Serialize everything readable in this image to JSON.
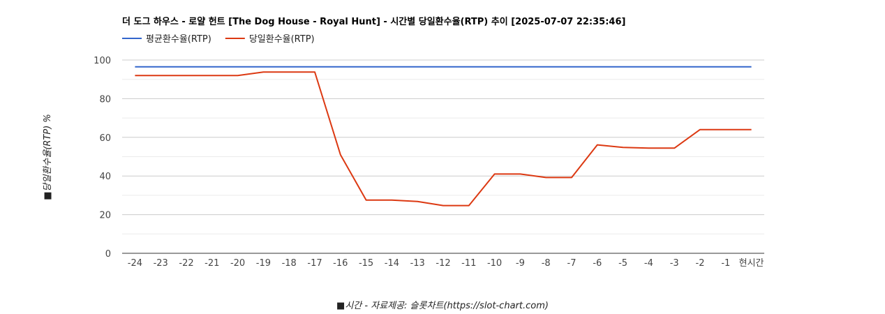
{
  "chart_data": {
    "type": "line",
    "title": "더 도그 하우스 - 로얄 헌트 [The Dog House - Royal Hunt] - 시간별 당일환수율(RTP) 추이 [2025-07-07 22:35:46]",
    "xlabel": "■시간 - 자료제공: 슬롯차트(https://slot-chart.com)",
    "ylabel": "■당일환수율(RTP) %",
    "categories": [
      "-24",
      "-23",
      "-22",
      "-21",
      "-20",
      "-19",
      "-18",
      "-17",
      "-16",
      "-15",
      "-14",
      "-13",
      "-12",
      "-11",
      "-10",
      "-9",
      "-8",
      "-7",
      "-6",
      "-5",
      "-4",
      "-3",
      "-2",
      "-1",
      "현시간"
    ],
    "ylim": [
      0,
      100
    ],
    "yticks": [
      0,
      20,
      40,
      60,
      80,
      100
    ],
    "grid": true,
    "legend_position": "top-left",
    "series": [
      {
        "name": "평균환수율(RTP)",
        "color": "#3366cc",
        "values": [
          96.5,
          96.5,
          96.5,
          96.5,
          96.5,
          96.5,
          96.5,
          96.5,
          96.5,
          96.5,
          96.5,
          96.5,
          96.5,
          96.5,
          96.5,
          96.5,
          96.5,
          96.5,
          96.5,
          96.5,
          96.5,
          96.5,
          96.5,
          96.5,
          96.5
        ]
      },
      {
        "name": "당일환수율(RTP)",
        "color": "#dc3912",
        "values": [
          92.0,
          92.0,
          92.0,
          92.0,
          92.0,
          93.8,
          93.8,
          93.8,
          51.0,
          27.5,
          27.5,
          26.8,
          24.7,
          24.7,
          41.0,
          41.0,
          39.2,
          39.2,
          56.1,
          54.8,
          54.4,
          54.4,
          64.0,
          64.0,
          64.0
        ]
      }
    ]
  }
}
